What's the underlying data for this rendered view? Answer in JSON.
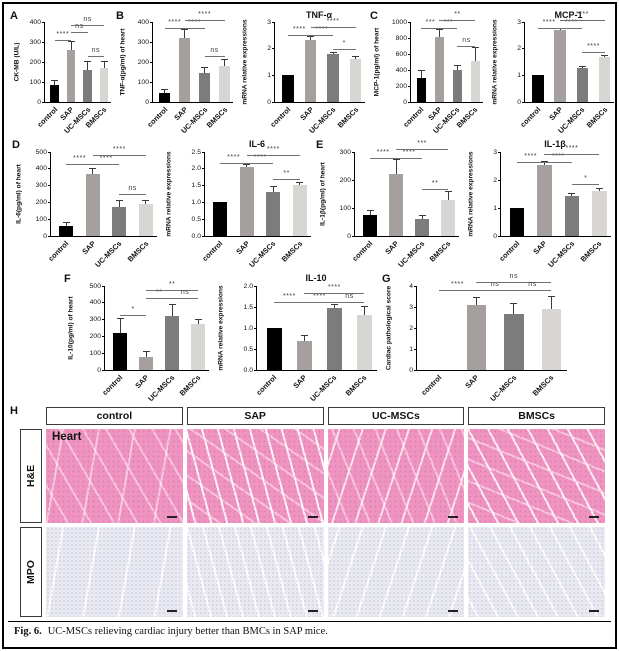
{
  "figure": {
    "caption_label": "Fig. 6.",
    "caption_text": "UC-MSCs relieving cardiac injury better than BMCs in SAP mice."
  },
  "colors": {
    "bars": {
      "control": "#000000",
      "SAP": "#a5a09e",
      "UC-MSCs": "#7e7c7a",
      "BMSCs": "#d8d6d3"
    },
    "he_stain": "#ef94c1",
    "mpo_stain": "#e9e9f1",
    "axis": "#000000"
  },
  "categories": [
    "control",
    "SAP",
    "UC-MSCs",
    "BMSCs"
  ],
  "chart_data": [
    {
      "panel": "A",
      "type": "bar",
      "title": "",
      "ylabel": "CK-MB (U/L)",
      "ylim": [
        0,
        400
      ],
      "yticks": [
        0,
        100,
        200,
        300,
        400
      ],
      "ytick_labels": [
        "0",
        "100",
        "200",
        "300",
        "400"
      ],
      "categories": [
        "control",
        "SAP",
        "UC-MSCs",
        "BMSCs"
      ],
      "values": [
        85,
        260,
        160,
        170
      ],
      "errors": [
        20,
        40,
        40,
        30
      ],
      "significance": [
        {
          "a": 0,
          "b": 1,
          "t": "****",
          "h": 0.78
        },
        {
          "a": 1,
          "b": 2,
          "t": "ns",
          "h": 0.87
        },
        {
          "a": 1,
          "b": 3,
          "t": "ns",
          "h": 0.96
        },
        {
          "a": 2,
          "b": 3,
          "t": "ns",
          "h": 0.58
        }
      ]
    },
    {
      "panel": "B",
      "type": "bar",
      "title": "",
      "ylabel": "TNF-α(pg/ml) of heart",
      "ylim": [
        0,
        400
      ],
      "yticks": [
        0,
        100,
        200,
        300,
        400
      ],
      "ytick_labels": [
        "0",
        "100",
        "200",
        "300",
        "400"
      ],
      "categories": [
        "control",
        "SAP",
        "UC-MSCs",
        "BMSCs"
      ],
      "values": [
        45,
        320,
        145,
        180
      ],
      "errors": [
        15,
        40,
        25,
        30
      ],
      "significance": [
        {
          "a": 0,
          "b": 1,
          "t": "****",
          "h": 0.92
        },
        {
          "a": 1,
          "b": 2,
          "t": "****",
          "h": 0.92
        },
        {
          "a": 1,
          "b": 3,
          "t": "****",
          "h": 1.02
        },
        {
          "a": 2,
          "b": 3,
          "t": "ns",
          "h": 0.57
        }
      ]
    },
    {
      "panel": "",
      "type": "bar",
      "title": "TNF-α",
      "ylabel": "mRNA relative expressions",
      "ylim": [
        0,
        3
      ],
      "yticks": [
        0,
        1,
        2,
        3
      ],
      "ytick_labels": [
        "0",
        "1",
        "2",
        "3"
      ],
      "categories": [
        "control",
        "SAP",
        "UC-MSCs",
        "BMSCs"
      ],
      "values": [
        1.0,
        2.33,
        1.8,
        1.6
      ],
      "errors": [
        0,
        0.12,
        0.04,
        0.08
      ],
      "significance": [
        {
          "a": 0,
          "b": 1,
          "t": "****",
          "h": 0.84
        },
        {
          "a": 1,
          "b": 2,
          "t": "****",
          "h": 0.84
        },
        {
          "a": 1,
          "b": 3,
          "t": "****",
          "h": 0.94
        },
        {
          "a": 2,
          "b": 3,
          "t": "*",
          "h": 0.66
        }
      ]
    },
    {
      "panel": "C",
      "type": "bar",
      "title": "",
      "ylabel": "MCP-1(pg/ml) of heart",
      "ylim": [
        0,
        1000
      ],
      "yticks": [
        0,
        200,
        400,
        600,
        800,
        1000
      ],
      "ytick_labels": [
        "0",
        "200",
        "400",
        "600",
        "800",
        "1000"
      ],
      "categories": [
        "control",
        "SAP",
        "UC-MSCs",
        "BMSCs"
      ],
      "values": [
        300,
        810,
        400,
        510
      ],
      "errors": [
        90,
        90,
        45,
        160
      ],
      "significance": [
        {
          "a": 0,
          "b": 1,
          "t": "***",
          "h": 0.92
        },
        {
          "a": 1,
          "b": 2,
          "t": "***",
          "h": 0.92
        },
        {
          "a": 1,
          "b": 3,
          "t": "**",
          "h": 1.02
        },
        {
          "a": 2,
          "b": 3,
          "t": "ns",
          "h": 0.7
        }
      ]
    },
    {
      "panel": "",
      "type": "bar",
      "title": "MCP-1",
      "ylabel": "mRNA relative expressions",
      "ylim": [
        0,
        3
      ],
      "yticks": [
        0,
        1,
        2,
        3
      ],
      "ytick_labels": [
        "0",
        "1",
        "2",
        "3"
      ],
      "categories": [
        "control",
        "SAP",
        "UC-MSCs",
        "BMSCs"
      ],
      "values": [
        1.0,
        2.7,
        1.27,
        1.67
      ],
      "errors": [
        0,
        0.05,
        0.06,
        0.06
      ],
      "significance": [
        {
          "a": 0,
          "b": 1,
          "t": "****",
          "h": 0.93
        },
        {
          "a": 1,
          "b": 2,
          "t": "****",
          "h": 0.93
        },
        {
          "a": 1,
          "b": 3,
          "t": "****",
          "h": 1.03
        },
        {
          "a": 2,
          "b": 3,
          "t": "****",
          "h": 0.62
        }
      ]
    },
    {
      "panel": "D",
      "type": "bar",
      "title": "",
      "ylabel": "IL-6(pg/ml) of heart",
      "ylim": [
        0,
        500
      ],
      "yticks": [
        0,
        100,
        200,
        300,
        400,
        500
      ],
      "ytick_labels": [
        "0",
        "100",
        "200",
        "300",
        "400",
        "500"
      ],
      "categories": [
        "control",
        "SAP",
        "UC-MSCs",
        "BMSCs"
      ],
      "values": [
        60,
        370,
        175,
        190
      ],
      "errors": [
        20,
        30,
        35,
        20
      ],
      "significance": [
        {
          "a": 0,
          "b": 1,
          "t": "****",
          "h": 0.86
        },
        {
          "a": 1,
          "b": 2,
          "t": "****",
          "h": 0.86
        },
        {
          "a": 1,
          "b": 3,
          "t": "****",
          "h": 0.96
        },
        {
          "a": 2,
          "b": 3,
          "t": "ns",
          "h": 0.5
        }
      ]
    },
    {
      "panel": "",
      "type": "bar",
      "title": "IL-6",
      "ylabel": "mRNA relative expressions",
      "ylim": [
        0,
        2.5
      ],
      "yticks": [
        0,
        0.5,
        1.0,
        1.5,
        2.0,
        2.5
      ],
      "ytick_labels": [
        "0.0",
        "0.5",
        "1.0",
        "1.5",
        "2.0",
        "2.5"
      ],
      "categories": [
        "control",
        "SAP",
        "UC-MSCs",
        "BMSCs"
      ],
      "values": [
        1.0,
        2.05,
        1.3,
        1.52
      ],
      "errors": [
        0,
        0.07,
        0.15,
        0.06
      ],
      "significance": [
        {
          "a": 0,
          "b": 1,
          "t": "****",
          "h": 0.87
        },
        {
          "a": 1,
          "b": 2,
          "t": "****",
          "h": 0.87
        },
        {
          "a": 1,
          "b": 3,
          "t": "****",
          "h": 0.97
        },
        {
          "a": 2,
          "b": 3,
          "t": "**",
          "h": 0.68
        }
      ]
    },
    {
      "panel": "E",
      "type": "bar",
      "title": "",
      "ylabel": "IL-1β(pg/ml) of heart",
      "ylim": [
        0,
        300
      ],
      "yticks": [
        0,
        100,
        200,
        300
      ],
      "ytick_labels": [
        "0",
        "100",
        "200",
        "300"
      ],
      "categories": [
        "control",
        "SAP",
        "UC-MSCs",
        "BMSCs"
      ],
      "values": [
        75,
        220,
        60,
        128
      ],
      "errors": [
        15,
        50,
        10,
        30
      ],
      "significance": [
        {
          "a": 0,
          "b": 1,
          "t": "****",
          "h": 0.93
        },
        {
          "a": 1,
          "b": 2,
          "t": "****",
          "h": 0.93
        },
        {
          "a": 1,
          "b": 3,
          "t": "***",
          "h": 1.03
        },
        {
          "a": 2,
          "b": 3,
          "t": "**",
          "h": 0.56
        }
      ]
    },
    {
      "panel": "",
      "type": "bar",
      "title": "IL-1β",
      "ylabel": "mRNA relative expressions",
      "ylim": [
        0,
        3
      ],
      "yticks": [
        0,
        1,
        2,
        3
      ],
      "ytick_labels": [
        "0",
        "1",
        "2",
        "3"
      ],
      "categories": [
        "control",
        "SAP",
        "UC-MSCs",
        "BMSCs"
      ],
      "values": [
        1.0,
        2.55,
        1.43,
        1.62
      ],
      "errors": [
        0,
        0.08,
        0.06,
        0.05
      ],
      "significance": [
        {
          "a": 0,
          "b": 1,
          "t": "****",
          "h": 0.88
        },
        {
          "a": 1,
          "b": 2,
          "t": "****",
          "h": 0.88
        },
        {
          "a": 1,
          "b": 3,
          "t": "****",
          "h": 0.98
        },
        {
          "a": 2,
          "b": 3,
          "t": "*",
          "h": 0.62
        }
      ]
    },
    {
      "panel": "F",
      "type": "bar",
      "title": "",
      "ylabel": "IL-10(pg/ml) of heart",
      "ylim": [
        0,
        500
      ],
      "yticks": [
        0,
        100,
        200,
        300,
        400,
        500
      ],
      "ytick_labels": [
        "0",
        "100",
        "200",
        "300",
        "400",
        "500"
      ],
      "categories": [
        "control",
        "SAP",
        "UC-MSCs",
        "BMSCs"
      ],
      "values": [
        220,
        75,
        320,
        272
      ],
      "errors": [
        85,
        30,
        65,
        28
      ],
      "significance": [
        {
          "a": 0,
          "b": 1,
          "t": "*",
          "h": 0.66
        },
        {
          "a": 1,
          "b": 2,
          "t": "**",
          "h": 0.86
        },
        {
          "a": 1,
          "b": 3,
          "t": "**",
          "h": 0.95
        },
        {
          "a": 2,
          "b": 3,
          "t": "ns",
          "h": 0.86
        }
      ]
    },
    {
      "panel": "",
      "type": "bar",
      "title": "IL-10",
      "ylabel": "mRNA relative expressions",
      "ylim": [
        0,
        2.0
      ],
      "yticks": [
        0,
        0.5,
        1.0,
        1.5,
        2.0
      ],
      "ytick_labels": [
        "0.0",
        "0.5",
        "1.0",
        "1.5",
        "2.0"
      ],
      "categories": [
        "control",
        "SAP",
        "UC-MSCs",
        "BMSCs"
      ],
      "values": [
        1.0,
        0.68,
        1.48,
        1.3
      ],
      "errors": [
        0,
        0.12,
        0.06,
        0.2
      ],
      "significance": [
        {
          "a": 0,
          "b": 1,
          "t": "****",
          "h": 0.81
        },
        {
          "a": 1,
          "b": 2,
          "t": "****",
          "h": 0.81
        },
        {
          "a": 1,
          "b": 3,
          "t": "****",
          "h": 0.92
        },
        {
          "a": 2,
          "b": 3,
          "t": "ns",
          "h": 0.81
        }
      ]
    },
    {
      "panel": "G",
      "type": "bar",
      "title": "",
      "ylabel": "Cardiac pathological score",
      "ylim": [
        0,
        4
      ],
      "yticks": [
        0,
        1,
        2,
        3,
        4
      ],
      "ytick_labels": [
        "0",
        "1",
        "2",
        "3",
        "4"
      ],
      "categories": [
        "control",
        "SAP",
        "UC-MSCs",
        "BMSCs"
      ],
      "values": [
        0,
        3.1,
        2.65,
        2.9
      ],
      "errors": [
        0,
        0.35,
        0.5,
        0.6
      ],
      "significance": [
        {
          "a": 0,
          "b": 1,
          "t": "****",
          "h": 0.95
        },
        {
          "a": 1,
          "b": 2,
          "t": "ns",
          "h": 0.95
        },
        {
          "a": 1,
          "b": 3,
          "t": "ns",
          "h": 1.05
        },
        {
          "a": 2,
          "b": 3,
          "t": "ns",
          "h": 0.95
        }
      ]
    }
  ],
  "histology": {
    "panel_letter": "H",
    "columns": [
      "control",
      "SAP",
      "UC-MSCs",
      "BMSCs"
    ],
    "rows": [
      "H&E",
      "MPO"
    ],
    "annotation": "Heart"
  }
}
